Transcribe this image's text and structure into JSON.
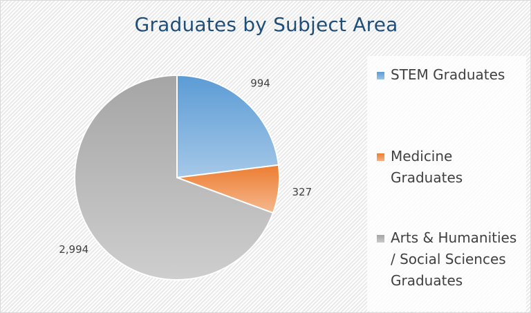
{
  "chart_data": {
    "type": "pie",
    "title": "Graduates by Subject Area",
    "categories": [
      "STEM Graduates",
      "Medicine Graduates",
      "Arts & Humanities / Social Sciences Graduates"
    ],
    "values": [
      994,
      327,
      2994
    ],
    "value_labels": [
      "994",
      "327",
      "2,994"
    ],
    "colors": [
      "#5b9bd5",
      "#ed7d31",
      "#a5a5a5"
    ],
    "legend_position": "right"
  }
}
